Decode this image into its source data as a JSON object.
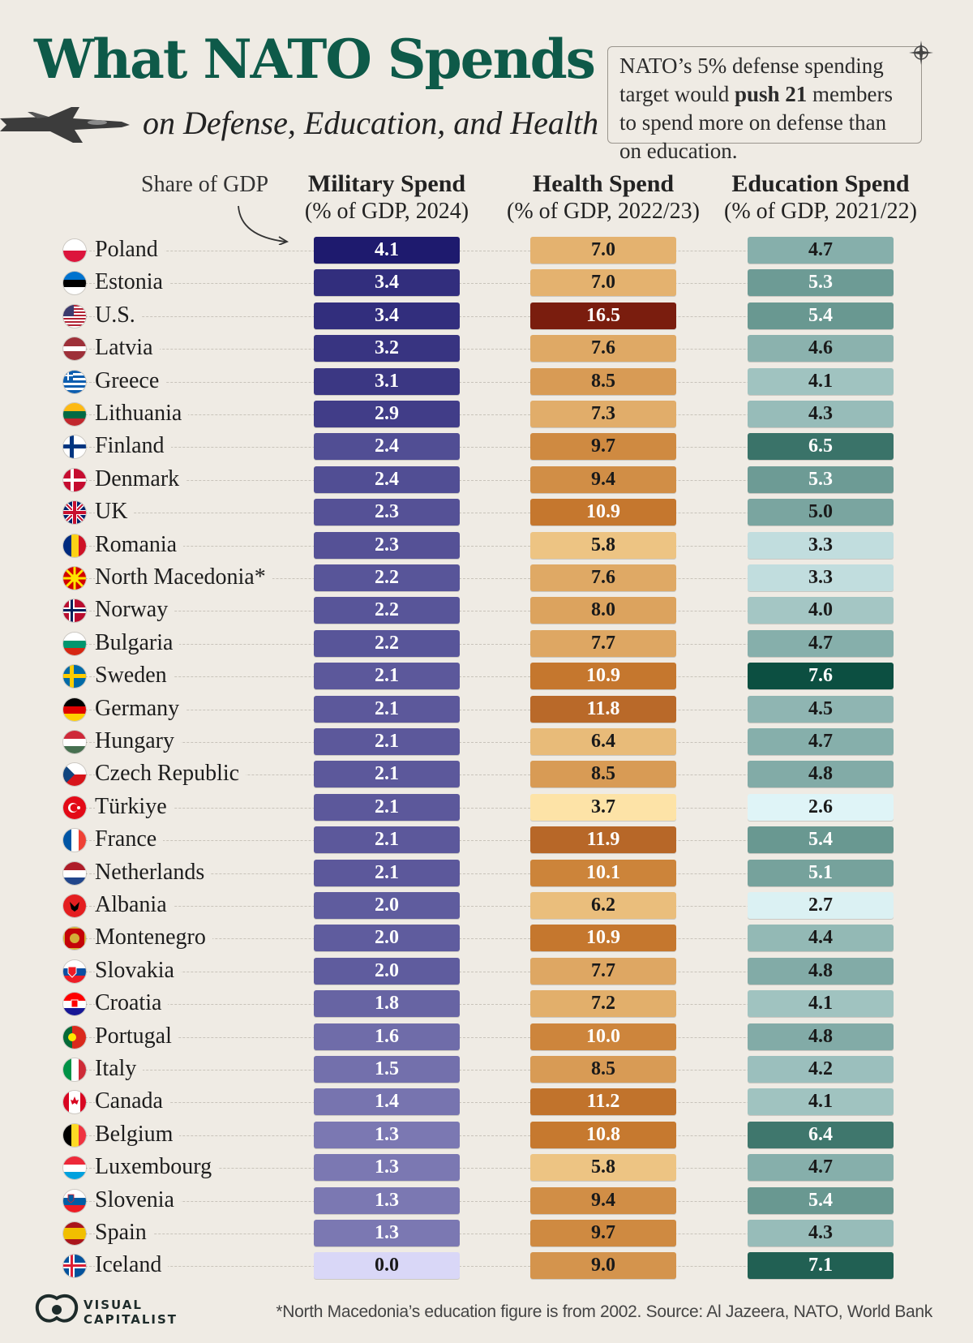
{
  "header": {
    "title": "What NATO Spends",
    "subtitle": "on Defense, Education, and Health",
    "callout_pre": "NATO’s 5% defense spending target would ",
    "callout_bold": "push 21",
    "callout_post": " members to spend more on defense than on education."
  },
  "share_label": "Share of GDP",
  "columns": [
    {
      "title": "Military Spend",
      "subtitle": "(% of GDP, 2024)"
    },
    {
      "title": "Health Spend",
      "subtitle": "(% of GDP, 2022/23)"
    },
    {
      "title": "Education Spend",
      "subtitle": "(% of GDP, 2021/22)"
    }
  ],
  "footer": {
    "note": "*North Macedonia’s education figure is from 2002. Source: Al Jazeera, NATO, World Bank",
    "logo_line1": "VISUAL",
    "logo_line2": "CAPITALIST"
  },
  "colors": {
    "military_min": "#d9d7f7",
    "military_max": "#1e1a6e",
    "health_min": "#fde3a7",
    "health_mid": "#c77a2f",
    "health_max": "#7a1d0e",
    "education_min": "#dff4f7",
    "education_max": "#0c4f41"
  },
  "chart_data": {
    "type": "table",
    "categories": [
      "Poland",
      "Estonia",
      "U.S.",
      "Latvia",
      "Greece",
      "Lithuania",
      "Finland",
      "Denmark",
      "UK",
      "Romania",
      "North Macedonia*",
      "Norway",
      "Bulgaria",
      "Sweden",
      "Germany",
      "Hungary",
      "Czech Republic",
      "Türkiye",
      "France",
      "Netherlands",
      "Albania",
      "Montenegro",
      "Slovakia",
      "Croatia",
      "Portugal",
      "Italy",
      "Canada",
      "Belgium",
      "Luxembourg",
      "Slovenia",
      "Spain",
      "Iceland"
    ],
    "flags": [
      "poland",
      "estonia",
      "usa",
      "latvia",
      "greece",
      "lithuania",
      "finland",
      "denmark",
      "uk",
      "romania",
      "north-macedonia",
      "norway",
      "bulgaria",
      "sweden",
      "germany",
      "hungary",
      "czech",
      "turkiye",
      "france",
      "netherlands",
      "albania",
      "montenegro",
      "slovakia",
      "croatia",
      "portugal",
      "italy",
      "canada",
      "belgium",
      "luxembourg",
      "slovenia",
      "spain",
      "iceland"
    ],
    "series": [
      {
        "name": "Military Spend",
        "values": [
          "4.1",
          "3.4",
          "3.4",
          "3.2",
          "3.1",
          "2.9",
          "2.4",
          "2.4",
          "2.3",
          "2.3",
          "2.2",
          "2.2",
          "2.2",
          "2.1",
          "2.1",
          "2.1",
          "2.1",
          "2.1",
          "2.1",
          "2.1",
          "2.0",
          "2.0",
          "2.0",
          "1.8",
          "1.6",
          "1.5",
          "1.4",
          "1.3",
          "1.3",
          "1.3",
          "1.3",
          "0.0"
        ]
      },
      {
        "name": "Health Spend",
        "values": [
          "7.0",
          "7.0",
          "16.5",
          "7.6",
          "8.5",
          "7.3",
          "9.7",
          "9.4",
          "10.9",
          "5.8",
          "7.6",
          "8.0",
          "7.7",
          "10.9",
          "11.8",
          "6.4",
          "8.5",
          "3.7",
          "11.9",
          "10.1",
          "6.2",
          "10.9",
          "7.7",
          "7.2",
          "10.0",
          "8.5",
          "11.2",
          "10.8",
          "5.8",
          "9.4",
          "9.7",
          "9.0"
        ]
      },
      {
        "name": "Education Spend",
        "values": [
          "4.7",
          "5.3",
          "5.4",
          "4.6",
          "4.1",
          "4.3",
          "6.5",
          "5.3",
          "5.0",
          "3.3",
          "3.3",
          "4.0",
          "4.7",
          "7.6",
          "4.5",
          "4.7",
          "4.8",
          "2.6",
          "5.4",
          "5.1",
          "2.7",
          "4.4",
          "4.8",
          "4.1",
          "4.8",
          "4.2",
          "4.1",
          "6.4",
          "4.7",
          "5.4",
          "4.3",
          "7.1"
        ]
      }
    ]
  }
}
